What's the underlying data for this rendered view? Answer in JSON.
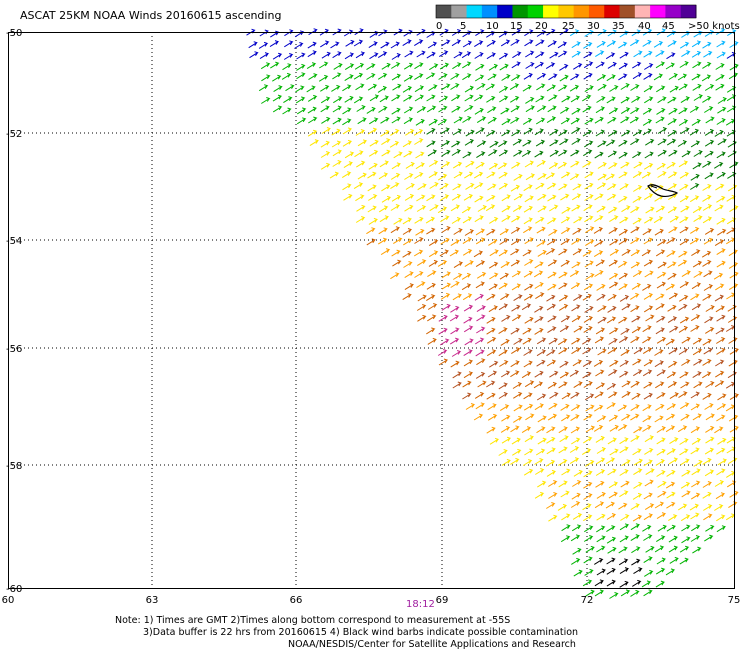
{
  "title": "ASCAT 25KM NOAA Winds 20160615 ascending",
  "legend": {
    "labels": [
      "0",
      "5",
      "10",
      "15",
      "20",
      "25",
      "30",
      "35",
      "40",
      "45",
      ">50 knots"
    ],
    "colors": [
      "#505050",
      "#a0a0a0",
      "#00d8ff",
      "#0090ff",
      "#0000c8",
      "#009600",
      "#00d200",
      "#ffff00",
      "#ffc800",
      "#ff9600",
      "#ff5a00",
      "#dc0000",
      "#a05028",
      "#ffb4b4",
      "#ff00ff",
      "#9600c8",
      "#500096"
    ]
  },
  "axes": {
    "lat_labels": [
      "-50",
      "-52",
      "-54",
      "-56",
      "-58",
      "-60"
    ],
    "lon_labels": [
      "60",
      "63",
      "66",
      "69",
      "72",
      "75"
    ]
  },
  "time_label": "18:12",
  "notes": {
    "line1": "Note: 1) Times are GMT 2)Times along bottom correspond to measurement at -55S",
    "line2": "3)Data buffer is 22 hrs from 20160615 4) Black wind barbs indicate possible contamination",
    "line3": "NOAA/NESDIS/Center for Satellite Applications and Research"
  },
  "swath_colors": {
    "blue": "#0000c8",
    "cyan": "#00b4ff",
    "green": "#00b400",
    "darkgreen": "#007800",
    "yellow": "#ffe600",
    "orange": "#ffa000",
    "darkorange": "#d26400",
    "brown": "#b4501e",
    "magenta": "#c8288c",
    "black": "#000000"
  }
}
